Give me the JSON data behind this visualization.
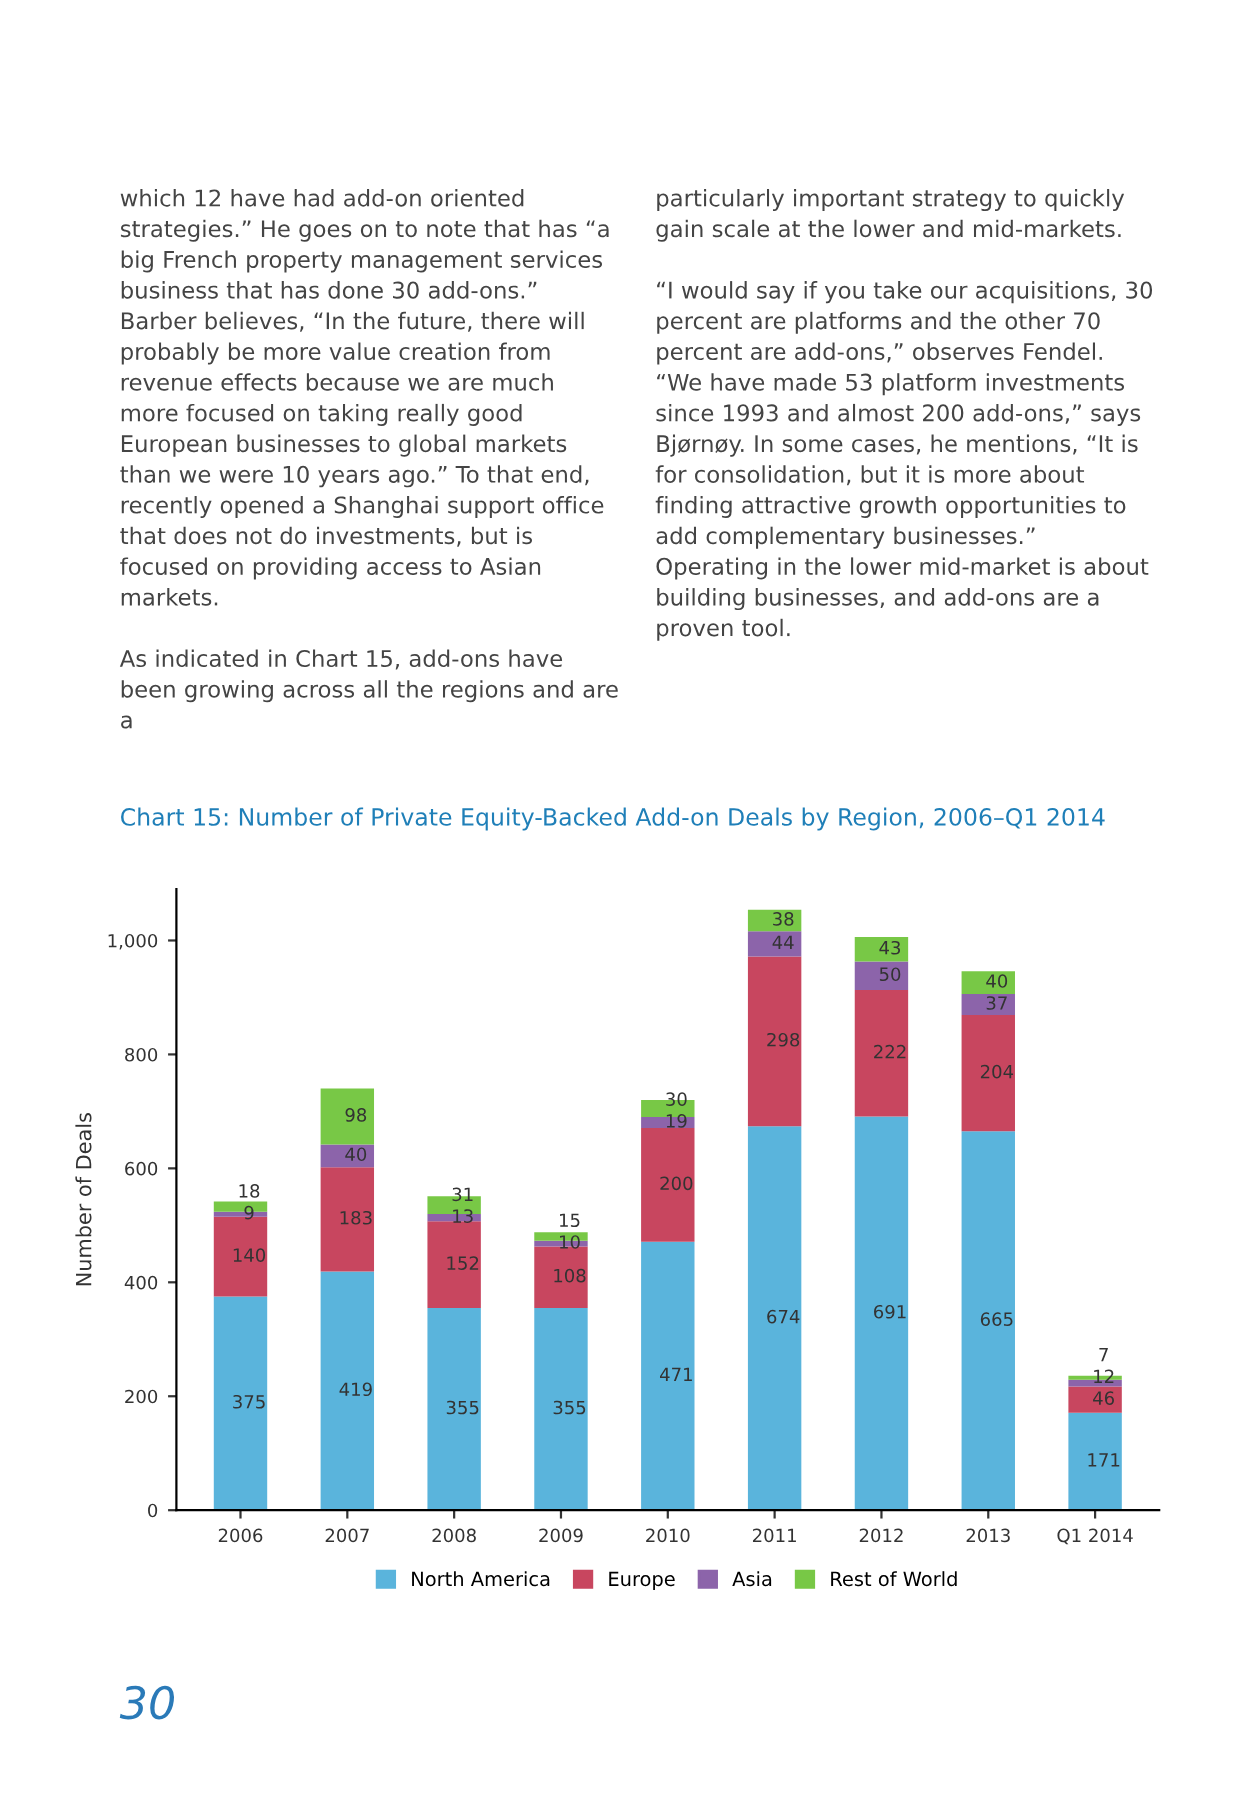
{
  "chart_data": {
    "type": "bar",
    "stacked": true,
    "title": "Chart 15: Number of Private Equity-Backed Add-on Deals by Region, 2006–Q1 2014",
    "ylabel": "Number of Deals",
    "categories": [
      "2006",
      "2007",
      "2008",
      "2009",
      "2010",
      "2011",
      "2012",
      "2013",
      "Q1 2014"
    ],
    "series": [
      {
        "name": "North America",
        "color": "#5ab4dc",
        "values": [
          375,
          419,
          355,
          355,
          471,
          674,
          691,
          665,
          171
        ]
      },
      {
        "name": "Europe",
        "color": "#c8465f",
        "values": [
          140,
          183,
          152,
          108,
          200,
          298,
          222,
          204,
          46
        ]
      },
      {
        "name": "Asia",
        "color": "#8c64aa",
        "values": [
          9,
          40,
          13,
          10,
          19,
          44,
          50,
          37,
          12
        ]
      },
      {
        "name": "Rest of World",
        "color": "#78c846",
        "values": [
          18,
          98,
          31,
          15,
          30,
          38,
          43,
          40,
          7
        ]
      }
    ],
    "ylim": [
      0,
      1090
    ],
    "yticks": [
      0,
      200,
      400,
      600,
      800,
      {
        "value": 1000,
        "label": "1,000"
      }
    ],
    "grid": false,
    "legend": "bottom",
    "data_labels": true,
    "annotations": [
      "which 12 have had add-on oriented strategies.” He goes on to note that has “a big French property management services business that has done 30 add-ons.” Barber believes, “In the future, there will probably be more value creation from revenue effects because we are much more focused on taking really good European businesses to global markets than we were 10 years ago.” To that end, recently opened a Shanghai support office that does not do investments, but is focused on providing access to Asian markets.",
      "As indicated in Chart 15, add-ons have been growing across all the regions and are a",
      "particularly important strategy to quickly gain scale at the lower and mid-markets.",
      "“I would say if you take our acquisitions, 30 percent are platforms and the other 70 percent are add-ons,” observes Fendel. “We have made 53 platform investments since 1993 and almost 200 add-ons,” says Bjørnøy. In some cases, he mentions, “It is for consolidation, but it is more about finding attractive growth opportunities to add complementary businesses.” Operating in the lower mid-market is about building businesses, and add-ons are a proven tool.",
      "30"
    ]
  }
}
